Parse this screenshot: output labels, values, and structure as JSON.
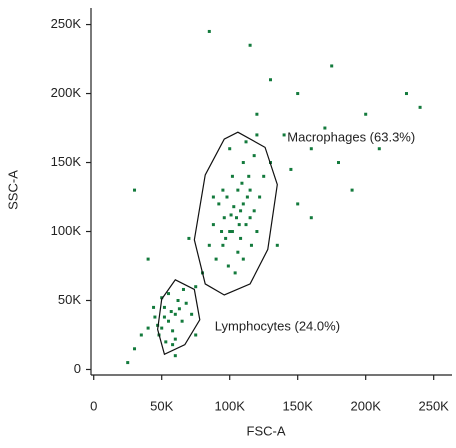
{
  "chart_data": {
    "type": "scatter",
    "xlabel": "FSC-A",
    "ylabel": "SSC-A",
    "color": "#137a3c",
    "xlim": [
      -2000,
      262000
    ],
    "ylim": [
      -4000,
      262000
    ],
    "xticks": [
      0,
      {
        "value": 50000,
        "label": "50K"
      },
      {
        "value": 100000,
        "label": "100K"
      },
      {
        "value": 150000,
        "label": "150K"
      },
      {
        "value": 200000,
        "label": "200K"
      },
      {
        "value": 250000,
        "label": "250K"
      }
    ],
    "yticks": [
      0,
      {
        "value": 50000,
        "label": "50K"
      },
      {
        "value": 100000,
        "label": "100K"
      },
      {
        "value": 150000,
        "label": "150K"
      },
      {
        "value": 200000,
        "label": "200K"
      },
      {
        "value": 250000,
        "label": "250K"
      }
    ],
    "x": [
      50000,
      55000,
      60000,
      48000,
      52000,
      58000,
      62000,
      45000,
      57000,
      53000,
      65000,
      50000,
      60000,
      47000,
      63000,
      55000,
      40000,
      68000,
      58000,
      44000,
      72000,
      35000,
      30000,
      66000,
      52000,
      100000,
      105000,
      110000,
      95000,
      115000,
      108000,
      98000,
      112000,
      102000,
      118000,
      90000,
      106000,
      120000,
      96000,
      110000,
      104000,
      114000,
      88000,
      100000,
      122000,
      108000,
      95000,
      116000,
      102000,
      99000,
      112000,
      125000,
      92000,
      106000,
      110000,
      85000,
      118000,
      103000,
      97000,
      113000,
      107000,
      101000,
      109000,
      94000,
      115000,
      130000,
      120000,
      88000,
      80000,
      75000,
      140000,
      160000,
      180000,
      200000,
      230000,
      150000,
      130000,
      190000,
      170000,
      145000,
      210000,
      115000,
      85000,
      70000,
      40000,
      30000,
      60000,
      25000,
      135000,
      160000,
      240000,
      175000,
      120000,
      150000,
      75000
    ],
    "y": [
      30000,
      35000,
      40000,
      25000,
      45000,
      28000,
      50000,
      38000,
      42000,
      20000,
      35000,
      52000,
      22000,
      32000,
      44000,
      55000,
      30000,
      48000,
      18000,
      45000,
      40000,
      25000,
      15000,
      58000,
      38000,
      100000,
      110000,
      120000,
      90000,
      130000,
      95000,
      125000,
      105000,
      140000,
      115000,
      80000,
      85000,
      100000,
      110000,
      150000,
      70000,
      140000,
      105000,
      160000,
      125000,
      115000,
      130000,
      90000,
      100000,
      75000,
      165000,
      140000,
      120000,
      130000,
      80000,
      90000,
      155000,
      118000,
      95000,
      125000,
      105000,
      112000,
      135000,
      100000,
      110000,
      150000,
      170000,
      125000,
      70000,
      60000,
      170000,
      160000,
      150000,
      185000,
      200000,
      200000,
      210000,
      130000,
      175000,
      145000,
      160000,
      235000,
      245000,
      95000,
      80000,
      130000,
      10000,
      5000,
      90000,
      110000,
      190000,
      220000,
      185000,
      120000,
      25000
    ],
    "gates": [
      {
        "label": "Macrophages (63.3%)",
        "x": [
          106000,
          126000,
          135000,
          128000,
          115000,
          96000,
          82000,
          74000,
          82000,
          96000
        ],
        "y": [
          172000,
          161000,
          134000,
          87000,
          62000,
          54000,
          62000,
          94000,
          141000,
          167000
        ]
      },
      {
        "label": "Lymphocytes (24.0%)",
        "x": [
          60000,
          74000,
          78000,
          67000,
          52000,
          47000,
          50000
        ],
        "y": [
          65000,
          58000,
          36000,
          18000,
          11000,
          29000,
          51000
        ]
      }
    ]
  }
}
